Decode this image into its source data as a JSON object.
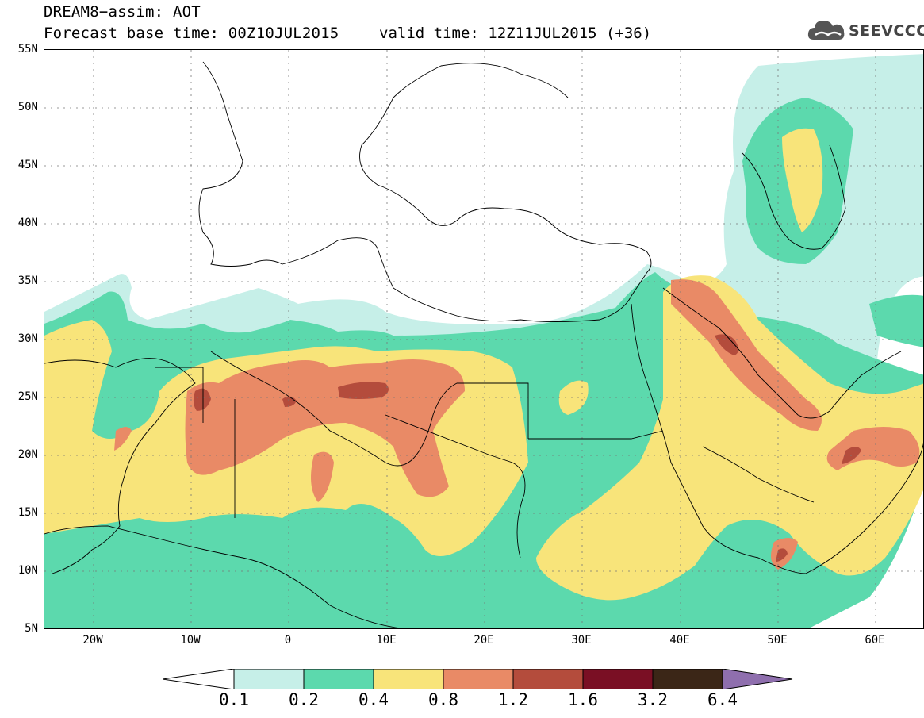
{
  "header": {
    "title": "DREAM8−assim: AOT",
    "forecast_base": "Forecast base time: 00Z10JUL2015",
    "valid_time": "valid time: 12Z11JUL2015 (+36)"
  },
  "logo": {
    "text": "SEEVCCC",
    "icon": "cloud-icon"
  },
  "axes": {
    "lat_labels": [
      "55N",
      "50N",
      "45N",
      "40N",
      "35N",
      "30N",
      "25N",
      "20N",
      "15N",
      "10N",
      "5N"
    ],
    "lon_labels": [
      "20W",
      "10W",
      "0",
      "10E",
      "20E",
      "30E",
      "40E",
      "50E",
      "60E"
    ],
    "lon_range": [
      -25,
      65
    ],
    "lat_range": [
      5,
      55
    ]
  },
  "colorbar": {
    "labels": [
      "0.1",
      "0.2",
      "0.4",
      "0.8",
      "1.2",
      "1.6",
      "3.2",
      "6.4"
    ],
    "colors": [
      "#ffffff",
      "#c6efe8",
      "#5cd9ad",
      "#f8e47a",
      "#e98a66",
      "#b44c3c",
      "#7a0f24",
      "#3b2617",
      "#8f6fae"
    ]
  }
}
